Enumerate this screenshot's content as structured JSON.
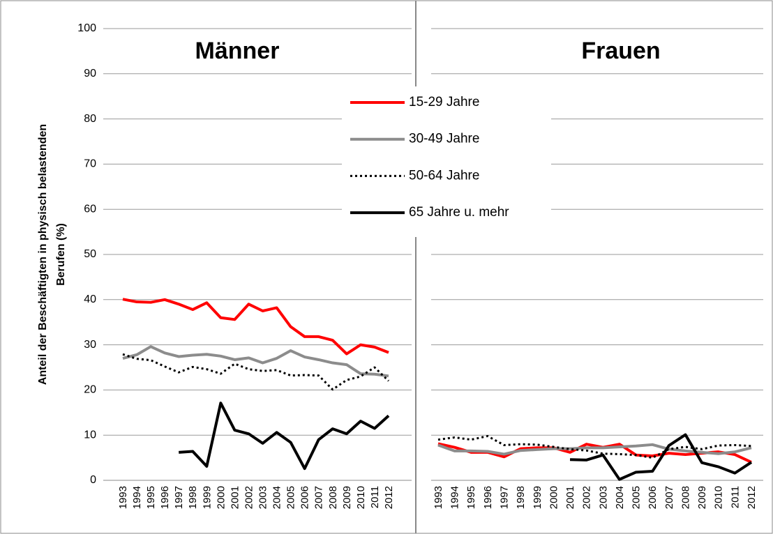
{
  "chart_data": [
    {
      "type": "line",
      "title": "Männer",
      "ylabel": [
        "Anteil der Beschäftigten in physisch belastenden",
        "Berufen  (%)"
      ],
      "categories": [
        "1993",
        "1994",
        "1995",
        "1996",
        "1997",
        "1998",
        "1999",
        "2000",
        "2001",
        "2002",
        "2003",
        "2004",
        "2005",
        "2006",
        "2007",
        "2008",
        "2009",
        "2010",
        "2011",
        "2012"
      ],
      "ylim": [
        0,
        100
      ],
      "yticks": [
        0,
        10,
        20,
        30,
        40,
        50,
        60,
        70,
        80,
        90,
        100
      ],
      "grid": true,
      "legend": "top-right",
      "series": [
        {
          "name": "15-29 Jahre",
          "color": "#ff0000",
          "dash": "solid",
          "values": [
            40.1,
            39.5,
            39.4,
            40,
            39,
            37.8,
            39.3,
            36,
            35.6,
            39,
            37.5,
            38.2,
            34,
            31.8,
            31.8,
            31,
            28,
            30,
            29.5,
            28.3
          ]
        },
        {
          "name": "30-49 Jahre",
          "color": "#8c8c8c",
          "dash": "solid",
          "values": [
            27,
            27.8,
            29.6,
            28.2,
            27.4,
            27.7,
            27.9,
            27.5,
            26.7,
            27.1,
            26,
            27,
            28.7,
            27.3,
            26.7,
            26,
            25.6,
            23.6,
            23.5,
            23.1
          ]
        },
        {
          "name": "50-64 Jahre",
          "color": "#000000",
          "dash": "dotted",
          "values": [
            27.9,
            26.9,
            26.6,
            25.2,
            23.9,
            25.1,
            24.6,
            23.6,
            25.8,
            24.6,
            24.2,
            24.4,
            23.2,
            23.3,
            23.2,
            20.1,
            22.2,
            23,
            25,
            22
          ]
        },
        {
          "name": "65 Jahre u. mehr",
          "color": "#000000",
          "dash": "solid",
          "values": [
            null,
            null,
            null,
            null,
            6.2,
            6.4,
            3.1,
            17.1,
            11.1,
            10.3,
            8.2,
            10.6,
            8.4,
            2.6,
            9,
            11.4,
            10.3,
            13.1,
            11.5,
            14.3
          ]
        }
      ]
    },
    {
      "type": "line",
      "title": "Frauen",
      "categories": [
        "1993",
        "1994",
        "1995",
        "1996",
        "1997",
        "1998",
        "1999",
        "2000",
        "2001",
        "2002",
        "2003",
        "2004",
        "2005",
        "2006",
        "2007",
        "2008",
        "2009",
        "2010",
        "2011",
        "2012"
      ],
      "ylim": [
        0,
        100
      ],
      "grid": true,
      "series": [
        {
          "color": "#ff0000",
          "dash": "solid",
          "values": [
            8.1,
            7.3,
            6.2,
            6.2,
            5.2,
            7,
            7.2,
            7.2,
            6.2,
            8,
            7.3,
            8,
            5.6,
            5.4,
            6,
            5.7,
            6,
            6.3,
            5.7,
            4
          ]
        },
        {
          "color": "#8c8c8c",
          "dash": "solid",
          "values": [
            7.8,
            6.5,
            6.5,
            6.4,
            5.8,
            6.6,
            6.8,
            7,
            7,
            7.2,
            7.2,
            7.4,
            7.6,
            7.9,
            6.9,
            6.5,
            6.2,
            5.9,
            6.3,
            7.2
          ]
        },
        {
          "color": "#000000",
          "dash": "dotted",
          "values": [
            9,
            9.5,
            9,
            9.8,
            7.8,
            8,
            7.9,
            7.4,
            6.9,
            6.6,
            5.9,
            5.8,
            5.6,
            5,
            6.9,
            7.4,
            6.9,
            7.7,
            7.8,
            7.6
          ]
        },
        {
          "color": "#000000",
          "dash": "solid",
          "values": [
            null,
            null,
            null,
            null,
            null,
            null,
            null,
            null,
            4.6,
            4.5,
            5.6,
            0.2,
            1.8,
            2,
            7.7,
            10.1,
            3.9,
            3,
            1.6,
            4
          ]
        }
      ]
    }
  ]
}
